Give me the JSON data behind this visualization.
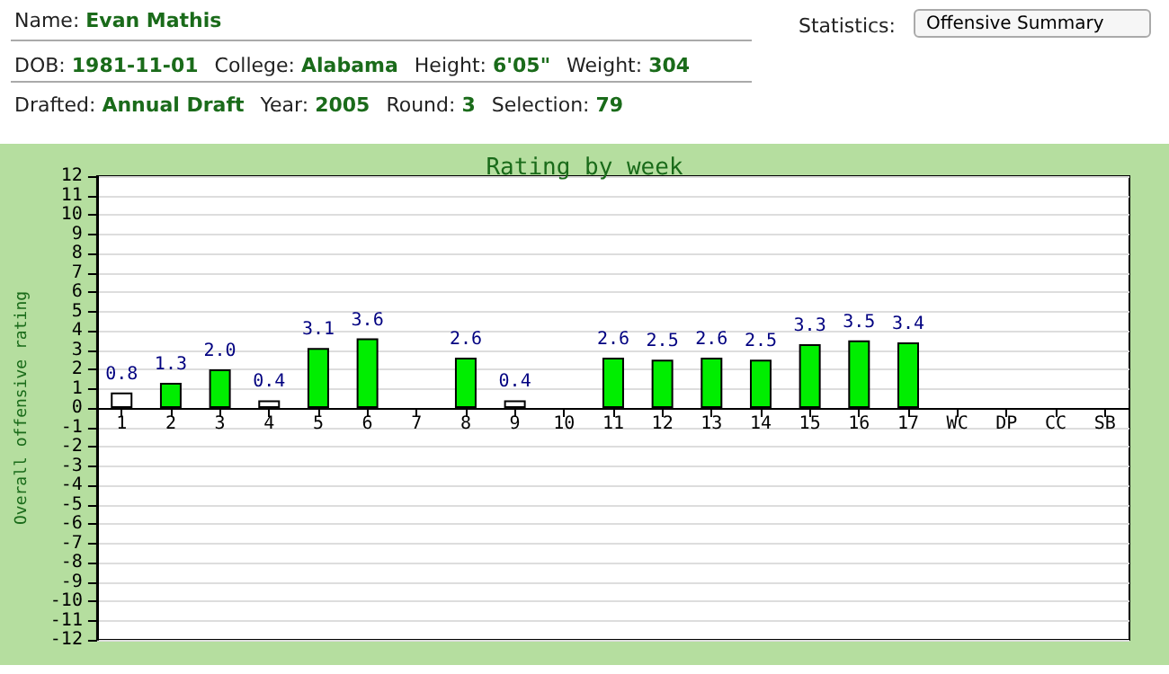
{
  "chart_data": {
    "type": "bar",
    "title": "Rating by week",
    "ylabel": "Overall offensive rating",
    "annotations": [
      "Name: Evan Mathis",
      "DOB: 1981-11-01",
      "College: Alabama",
      "Height: 6'05\"",
      "Weight: 304",
      "Drafted: Annual Draft",
      "Year: 2005",
      "Round: 3",
      "Selection: 79",
      "Statistics:",
      "Offensive Summary"
    ],
    "categories": [
      "1",
      "2",
      "3",
      "4",
      "5",
      "6",
      "7",
      "8",
      "9",
      "10",
      "11",
      "12",
      "13",
      "14",
      "15",
      "16",
      "17",
      "WC",
      "DP",
      "CC",
      "SB"
    ],
    "values": [
      0.8,
      1.3,
      2.0,
      0.4,
      3.1,
      3.6,
      null,
      2.6,
      0.4,
      null,
      2.6,
      2.5,
      2.6,
      2.5,
      3.3,
      3.5,
      3.4,
      null,
      null,
      null,
      null
    ],
    "value_labels": [
      "0.8",
      "1.3",
      "2.0",
      "0.4",
      "3.1",
      "3.6",
      null,
      "2.6",
      "0.4",
      null,
      "2.6",
      "2.5",
      "2.6",
      "2.5",
      "3.3",
      "3.5",
      "3.4",
      null,
      null,
      null,
      null
    ],
    "colors": [
      "#ffffff",
      "#00ee00",
      "#00ee00",
      "#ffffff",
      "#00ee00",
      "#00ee00",
      null,
      "#00ee00",
      "#ffffff",
      null,
      "#00ee00",
      "#00ee00",
      "#00ee00",
      "#00ee00",
      "#00ee00",
      "#00ee00",
      "#00ee00",
      null,
      null,
      null,
      null
    ],
    "ylim": [
      -12,
      12
    ],
    "yticks": [
      -12,
      -11,
      -10,
      -9,
      -8,
      -7,
      -6,
      -5,
      -4,
      -3,
      -2,
      -1,
      0,
      1,
      2,
      3,
      4,
      5,
      6,
      7,
      8,
      9,
      10,
      11,
      12
    ],
    "grid": "y"
  }
}
